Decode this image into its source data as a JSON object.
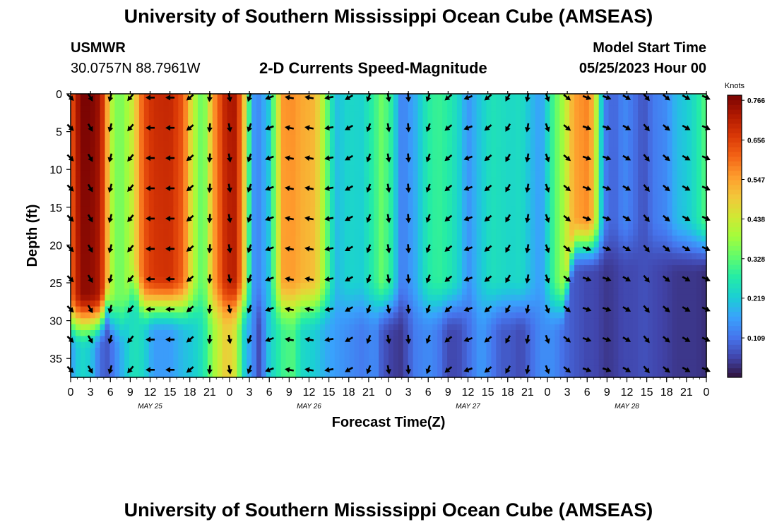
{
  "header": {
    "title": "University of Southern Mississippi Ocean Cube (AMSEAS)",
    "station_name": "USMWR",
    "station_coords": "30.0757N  88.7961W",
    "subtitle": "2-D Currents Speed-Magnitude",
    "model_start_label": "Model Start Time",
    "model_start_value": "05/25/2023 Hour 00",
    "footer_title": "University of Southern Mississippi Ocean Cube (AMSEAS)"
  },
  "colors": {
    "scale": [
      "#30123b",
      "#4145ab",
      "#4675ed",
      "#39a2fc",
      "#1bcfd4",
      "#24eca6",
      "#61fc6c",
      "#a4fc3b",
      "#d1e834",
      "#f3c63a",
      "#fe9b2d",
      "#f36315",
      "#d93806",
      "#b11901",
      "#7a0403"
    ],
    "arrow": "#000000",
    "frame": "#000000"
  },
  "chart_data": {
    "type": "heatmap",
    "title": "2-D Currents Speed-Magnitude",
    "xlabel": "Forecast Time(Z)",
    "ylabel": "Depth (ft)",
    "x_range_hours": [
      0,
      96
    ],
    "x_tick_hours": [
      0,
      3,
      6,
      9,
      12,
      15,
      18,
      21,
      24,
      27,
      30,
      33,
      36,
      39,
      42,
      45,
      48,
      51,
      54,
      57,
      60,
      63,
      66,
      69,
      72,
      75,
      78,
      81,
      84,
      87,
      90,
      93,
      96
    ],
    "x_tick_labels": [
      "0",
      "3",
      "6",
      "9",
      "12",
      "15",
      "18",
      "21",
      "0",
      "3",
      "6",
      "9",
      "12",
      "15",
      "18",
      "21",
      "0",
      "3",
      "6",
      "9",
      "12",
      "15",
      "18",
      "21",
      "0",
      "3",
      "6",
      "9",
      "12",
      "15",
      "18",
      "21",
      "0"
    ],
    "day_labels": [
      {
        "hour": 12,
        "label": "MAY 25"
      },
      {
        "hour": 36,
        "label": "MAY 26"
      },
      {
        "hour": 60,
        "label": "MAY 27"
      },
      {
        "hour": 84,
        "label": "MAY 28"
      }
    ],
    "y_range_ft": [
      0,
      37.5
    ],
    "y_ticks": [
      0,
      5,
      10,
      15,
      20,
      25,
      30,
      35
    ],
    "y_tick_labels": [
      "0",
      "5",
      "10",
      "15",
      "20",
      "25",
      "30",
      "35"
    ],
    "colorbar": {
      "unit": "Knots",
      "range": [
        0.0,
        0.78
      ],
      "ticks": [
        0.766,
        0.656,
        0.547,
        0.438,
        0.328,
        0.219,
        0.109
      ],
      "tick_labels": [
        "0.766",
        "0.656",
        "0.547",
        "0.438",
        "0.328",
        "0.219",
        "0.109"
      ]
    },
    "speed_profile_knots": {
      "hours": [
        0,
        1.5,
        3,
        4.5,
        5.5,
        6.5,
        8,
        9.5,
        11,
        12.5,
        15,
        17,
        18.5,
        20,
        21.5,
        23.5,
        25,
        26,
        27.5,
        28.5,
        30,
        32,
        33.5,
        35,
        37,
        38.5,
        40,
        42,
        44,
        46,
        47,
        48.5,
        50,
        52,
        54,
        55.5,
        57,
        58.5,
        60,
        62,
        63.5,
        65,
        66.5,
        68,
        69.5,
        71,
        73,
        74.5,
        76,
        78,
        79,
        80,
        81,
        82.5,
        83.5,
        85,
        86.5,
        88,
        90,
        91.5,
        93,
        94.5,
        96
      ],
      "surface": [
        0.62,
        0.78,
        0.78,
        0.74,
        0.55,
        0.36,
        0.36,
        0.45,
        0.64,
        0.69,
        0.7,
        0.63,
        0.42,
        0.32,
        0.55,
        0.72,
        0.73,
        0.55,
        0.16,
        0.14,
        0.22,
        0.56,
        0.57,
        0.54,
        0.52,
        0.36,
        0.2,
        0.24,
        0.23,
        0.3,
        0.35,
        0.28,
        0.12,
        0.18,
        0.28,
        0.3,
        0.28,
        0.24,
        0.15,
        0.22,
        0.26,
        0.25,
        0.24,
        0.25,
        0.2,
        0.16,
        0.32,
        0.4,
        0.55,
        0.58,
        0.52,
        0.25,
        0.1,
        0.1,
        0.14,
        0.11,
        0.07,
        0.12,
        0.14,
        0.2,
        0.22,
        0.26,
        0.33
      ],
      "bottom": [
        0.16,
        0.24,
        0.22,
        0.1,
        0.08,
        0.12,
        0.2,
        0.26,
        0.24,
        0.16,
        0.16,
        0.2,
        0.22,
        0.26,
        0.38,
        0.5,
        0.44,
        0.24,
        0.14,
        0.06,
        0.22,
        0.3,
        0.32,
        0.24,
        0.22,
        0.18,
        0.16,
        0.14,
        0.12,
        0.14,
        0.08,
        0.05,
        0.04,
        0.12,
        0.14,
        0.12,
        0.06,
        0.06,
        0.1,
        0.16,
        0.12,
        0.08,
        0.08,
        0.06,
        0.1,
        0.14,
        0.14,
        0.1,
        0.08,
        0.06,
        0.06,
        0.05,
        0.04,
        0.05,
        0.06,
        0.06,
        0.07,
        0.06,
        0.05,
        0.04,
        0.04,
        0.04,
        0.03
      ],
      "mid_depth_ft": [
        30,
        30,
        30,
        30,
        28,
        30,
        30,
        25,
        28,
        28,
        28,
        28,
        28,
        28,
        28,
        28,
        28,
        28,
        28,
        28,
        28,
        28,
        28,
        28,
        28,
        28,
        28,
        28,
        28,
        28,
        28,
        28,
        28,
        28,
        28,
        28,
        28,
        28,
        28,
        28,
        28,
        28,
        28,
        28,
        28,
        28,
        28,
        28,
        20,
        20,
        20,
        20,
        20,
        20,
        20,
        20,
        20,
        20,
        20,
        20,
        20,
        20,
        20
      ]
    },
    "arrow_grid": {
      "hours": [
        0,
        3,
        6,
        9,
        12,
        15,
        18,
        21,
        24,
        27,
        30,
        33,
        36,
        39,
        42,
        45,
        48,
        51,
        54,
        57,
        60,
        63,
        66,
        69,
        72,
        75,
        78,
        81,
        84,
        87,
        90,
        93,
        96
      ],
      "depths_ft": [
        0.5,
        4.5,
        8.5,
        12.5,
        16.5,
        20.5,
        24.5,
        28.5,
        32.5,
        36.5
      ],
      "direction_deg_by_hour": [
        135,
        150,
        195,
        220,
        270,
        270,
        230,
        185,
        170,
        200,
        250,
        280,
        280,
        260,
        240,
        200,
        170,
        175,
        200,
        230,
        250,
        230,
        210,
        190,
        160,
        130,
        110,
        110,
        120,
        140,
        130,
        120,
        115
      ]
    }
  }
}
